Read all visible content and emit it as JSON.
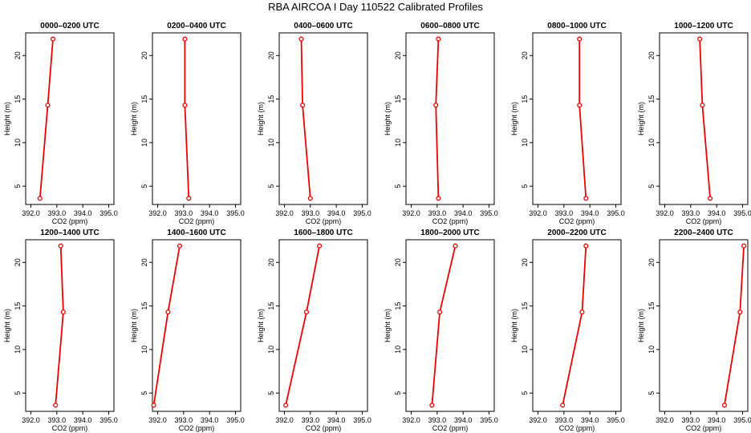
{
  "figure": {
    "title": "RBA AIRCOA I  Day 110522  Calibrated Profiles",
    "xlabel": "CO2 (ppm)",
    "ylabel": "Height (m)",
    "line_color": "#ee0000",
    "axis_color": "#000000"
  },
  "chart_data": {
    "type": "line",
    "xlim": [
      391.8,
      395.2
    ],
    "ylim": [
      2.9,
      22.6
    ],
    "xticks": [
      392.0,
      393.0,
      394.0,
      395.0
    ],
    "xtick_labels": [
      "392.0",
      "393.0",
      "394.0",
      "395.0"
    ],
    "yticks": [
      5,
      10,
      15,
      20
    ],
    "ytick_labels": [
      "5",
      "10",
      "15",
      "20"
    ],
    "grid": false,
    "panels": [
      {
        "title": "0000–0200 UTC",
        "x": [
          392.35,
          392.65,
          392.85
        ],
        "y": [
          3.6,
          14.3,
          21.9
        ]
      },
      {
        "title": "0200–0400 UTC",
        "x": [
          393.2,
          393.05,
          393.05
        ],
        "y": [
          3.6,
          14.3,
          21.9
        ]
      },
      {
        "title": "0400–0600 UTC",
        "x": [
          393.0,
          392.7,
          392.65
        ],
        "y": [
          3.6,
          14.3,
          21.9
        ]
      },
      {
        "title": "0600–0800 UTC",
        "x": [
          393.05,
          392.95,
          393.05
        ],
        "y": [
          3.6,
          14.3,
          21.9
        ]
      },
      {
        "title": "0800–1000 UTC",
        "x": [
          393.85,
          393.6,
          393.6
        ],
        "y": [
          3.6,
          14.3,
          21.9
        ]
      },
      {
        "title": "1000–1200 UTC",
        "x": [
          393.75,
          393.45,
          393.35
        ],
        "y": [
          3.6,
          14.3,
          21.9
        ]
      },
      {
        "title": "1200–1400 UTC",
        "x": [
          392.95,
          393.25,
          393.15
        ],
        "y": [
          3.6,
          14.3,
          21.9
        ]
      },
      {
        "title": "1400–1600 UTC",
        "x": [
          391.85,
          392.4,
          392.85
        ],
        "y": [
          3.6,
          14.3,
          21.9
        ]
      },
      {
        "title": "1600–1800 UTC",
        "x": [
          392.05,
          392.85,
          393.35
        ],
        "y": [
          3.6,
          14.3,
          21.9
        ]
      },
      {
        "title": "1800–2000 UTC",
        "x": [
          392.8,
          393.1,
          393.7
        ],
        "y": [
          3.6,
          14.3,
          21.9
        ]
      },
      {
        "title": "2000–2200 UTC",
        "x": [
          392.95,
          393.7,
          393.85
        ],
        "y": [
          3.6,
          14.3,
          21.9
        ]
      },
      {
        "title": "2200–2400 UTC",
        "x": [
          394.3,
          394.9,
          395.05
        ],
        "y": [
          3.6,
          14.3,
          21.9
        ]
      }
    ]
  }
}
